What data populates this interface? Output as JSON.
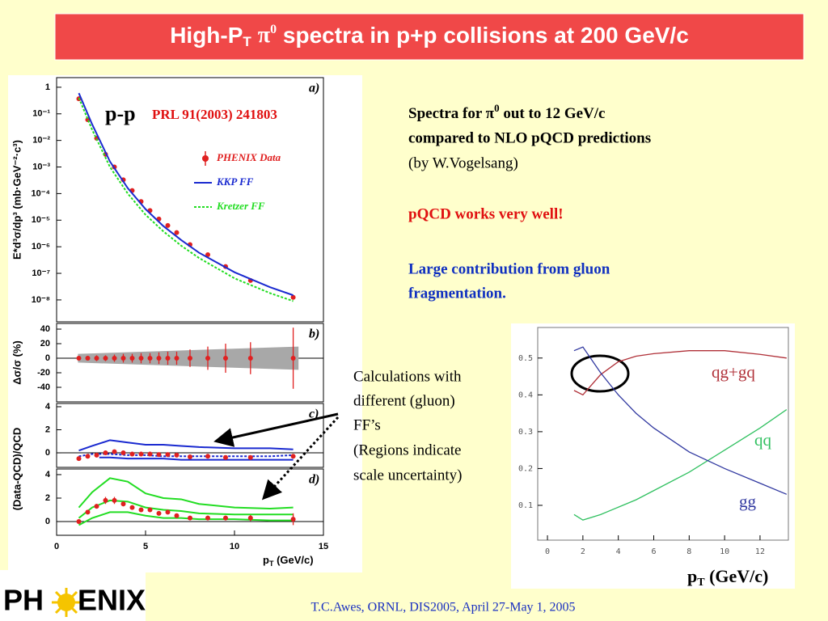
{
  "title": [
    "High-P",
    "T",
    "π",
    "0",
    " spectra in p+p collisions at 200 GeV/c"
  ],
  "note1": [
    "Spectra for π",
    "0",
    " out to 12 GeV/c"
  ],
  "note1_lines": [
    "compared to NLO pQCD predictions",
    "(by W.Vogelsang)"
  ],
  "note2": "pQCD works very well!",
  "note3": [
    "Large contribution from gluon",
    "fragmentation."
  ],
  "callout": [
    "Calculations with",
    "different (gluon)",
    "FF’s",
    "(Regions indicate",
    "scale uncertainty)"
  ],
  "footer": "T.C.Awes, ORNL,   DIS2005,   April 27-May 1, 2005",
  "logo": [
    "PH",
    "ENIX"
  ],
  "chart_data": [
    {
      "type": "scatter",
      "panel_label": "a)",
      "system": "p-p",
      "reference": "PRL 91(2003) 241803",
      "ylabel": "E*d³σ/dp³ (mb·GeV⁻²·c³)",
      "log_y": true,
      "xlim": [
        0,
        15
      ],
      "ylim": [
        1.5e-09,
        2.3
      ],
      "yticks": [
        1,
        {
          "value": 0.1,
          "label": "10⁻¹"
        },
        {
          "value": 0.01,
          "label": "10⁻²"
        },
        {
          "value": 0.001,
          "label": "10⁻³"
        },
        {
          "value": 0.0001,
          "label": "10⁻⁴"
        },
        {
          "value": 1e-05,
          "label": "10⁻⁵"
        },
        {
          "value": 1e-06,
          "label": "10⁻⁶"
        },
        {
          "value": 1e-07,
          "label": "10⁻⁷"
        },
        {
          "value": 1e-08,
          "label": "10⁻⁸"
        }
      ],
      "series": [
        {
          "name": "PHENIX Data",
          "kind": "points",
          "color": "#e02020",
          "x": [
            1.25,
            1.75,
            2.25,
            2.75,
            3.25,
            3.75,
            4.25,
            4.75,
            5.25,
            5.75,
            6.25,
            6.75,
            7.5,
            8.5,
            9.5,
            10.9,
            13.3
          ],
          "values": [
            0.37,
            0.06,
            0.012,
            0.003,
            0.001,
            0.00033,
            0.00013,
            5e-05,
            2.3e-05,
            1.1e-05,
            6.3e-06,
            3.4e-06,
            1.2e-06,
            5e-07,
            1.8e-07,
            5.4e-08,
            1.25e-08
          ]
        },
        {
          "name": "KKP FF",
          "kind": "line",
          "color": "#1a2ad0",
          "dash": false,
          "x": [
            1.25,
            2,
            3,
            4,
            5,
            6,
            7,
            8,
            10,
            12,
            13.3
          ],
          "values": [
            0.6,
            0.04,
            0.0016,
            0.00016,
            2.6e-05,
            6e-06,
            1.8e-06,
            6e-07,
            1.1e-07,
            3e-08,
            1.5e-08
          ]
        },
        {
          "name": "Kretzer FF",
          "kind": "line",
          "color": "#22dd22",
          "dash": true,
          "x": [
            1.25,
            2,
            3,
            4,
            5,
            6,
            7,
            8,
            10,
            12,
            13.3
          ],
          "values": [
            0.4,
            0.025,
            0.001,
            0.0001,
            1.6e-05,
            3.8e-06,
            1.1e-06,
            3.8e-07,
            6.5e-08,
            1.8e-08,
            9e-09
          ]
        }
      ]
    },
    {
      "type": "scatter",
      "panel_label": "b)",
      "ylabel": "Δσ/σ (%)",
      "xlim": [
        0,
        15
      ],
      "ylim": [
        -60,
        47.8
      ],
      "yticks": [
        40,
        20,
        0,
        -20,
        -40
      ],
      "series": [
        {
          "kind": "band",
          "color": "#a8a8a8",
          "x": [
            1.2,
            13.6
          ],
          "values": [
            0,
            0
          ],
          "errors": [
            6,
            16
          ]
        },
        {
          "kind": "points",
          "color": "#e02020",
          "x": [
            1.25,
            1.75,
            2.25,
            2.75,
            3.25,
            3.75,
            4.25,
            4.75,
            5.25,
            5.75,
            6.25,
            6.75,
            7.5,
            8.5,
            9.5,
            10.9,
            13.3
          ],
          "values": [
            0,
            0,
            0,
            0,
            0,
            0,
            0,
            0,
            0,
            0,
            0,
            0,
            0,
            0,
            0,
            0,
            0
          ],
          "errors": [
            3,
            3,
            4,
            4,
            5,
            6,
            6,
            7,
            7,
            8,
            9,
            9,
            12,
            16,
            20,
            22,
            42
          ]
        }
      ]
    },
    {
      "type": "scatter",
      "panel_label": "c)",
      "ylabel": "(Data-QCD)/QCD",
      "xlim": [
        0,
        15
      ],
      "ylim": [
        -1.26,
        4.28
      ],
      "yticks": [
        4,
        2,
        0
      ],
      "series": [
        {
          "kind": "line",
          "color": "#1a2ad0",
          "dash": false,
          "x": [
            1.25,
            2,
            3,
            4,
            5,
            6,
            7,
            8,
            10,
            12,
            13.3
          ],
          "values": [
            0.2,
            0.6,
            1.1,
            0.9,
            0.7,
            0.7,
            0.6,
            0.5,
            0.4,
            0.4,
            0.3
          ]
        },
        {
          "kind": "line",
          "color": "#1a2ad0",
          "dash": true,
          "x": [
            1.25,
            2,
            3,
            4,
            5,
            6,
            7,
            8,
            10,
            12,
            13.3
          ],
          "values": [
            -0.3,
            -0.1,
            -0.1,
            -0.2,
            -0.2,
            -0.3,
            -0.3,
            -0.3,
            -0.3,
            -0.3,
            -0.2
          ]
        },
        {
          "kind": "line",
          "color": "#1a2ad0",
          "dash": false,
          "x": [
            2.4,
            3,
            4,
            5,
            6,
            7,
            8,
            10,
            12,
            13.3
          ],
          "values": [
            -0.4,
            -0.4,
            -0.5,
            -0.5,
            -0.5,
            -0.6,
            -0.6,
            -0.6,
            -0.6,
            -0.6
          ]
        },
        {
          "kind": "points",
          "color": "#e02020",
          "x": [
            1.25,
            1.75,
            2.25,
            2.75,
            3.25,
            3.75,
            4.25,
            4.75,
            5.25,
            5.75,
            6.25,
            6.75,
            7.5,
            8.5,
            9.5,
            10.9,
            13.3
          ],
          "values": [
            -0.5,
            -0.3,
            -0.2,
            0,
            0.1,
            0,
            -0.1,
            -0.1,
            -0.1,
            -0.15,
            -0.15,
            -0.2,
            -0.35,
            -0.3,
            -0.4,
            -0.4,
            -0.3
          ]
        }
      ]
    },
    {
      "type": "scatter",
      "panel_label": "d)",
      "xlim": [
        0,
        15
      ],
      "ylim": [
        -1.17,
        4.48
      ],
      "yticks": [
        4,
        2,
        0
      ],
      "xticks": [
        0,
        5,
        10,
        15
      ],
      "xlabel": [
        "p",
        "T",
        " (GeV/c)"
      ],
      "series": [
        {
          "kind": "line",
          "color": "#22dd22",
          "dash": false,
          "x": [
            1.25,
            2,
            3,
            4,
            5,
            6,
            7,
            8,
            10,
            12,
            13.3
          ],
          "values": [
            1.2,
            2.5,
            3.7,
            3.4,
            2.4,
            2.0,
            1.9,
            1.5,
            1.2,
            1.1,
            1.2
          ]
        },
        {
          "kind": "line",
          "color": "#22dd22",
          "dash": false,
          "x": [
            1.25,
            2,
            3,
            4,
            5,
            6,
            7,
            8,
            10,
            12,
            13.3
          ],
          "values": [
            0.3,
            1.2,
            1.8,
            1.7,
            1.2,
            1.0,
            0.9,
            0.7,
            0.6,
            0.6,
            0.6
          ]
        },
        {
          "kind": "line",
          "color": "#22dd22",
          "dash": false,
          "x": [
            1.25,
            2,
            3,
            4,
            5,
            6,
            7,
            8,
            10,
            12,
            13.3
          ],
          "values": [
            -0.3,
            0.3,
            0.8,
            0.8,
            0.5,
            0.3,
            0.3,
            0.2,
            0.2,
            0.1,
            0.1
          ]
        },
        {
          "kind": "points",
          "color": "#e02020",
          "x": [
            1.25,
            1.75,
            2.25,
            2.75,
            3.25,
            3.75,
            4.25,
            4.75,
            5.25,
            5.75,
            6.25,
            6.75,
            7.5,
            8.5,
            9.5,
            10.9,
            13.3
          ],
          "values": [
            0,
            0.8,
            1.3,
            1.8,
            1.8,
            1.5,
            1.2,
            1.0,
            1.0,
            0.7,
            0.8,
            0.5,
            0.3,
            0.3,
            0.3,
            0.3,
            0.2
          ],
          "errors": [
            0.1,
            0.15,
            0.2,
            0.3,
            0.3,
            0.2,
            0.15,
            0.15,
            0.15,
            0.15,
            0.15,
            0.15,
            0.15,
            0.2,
            0.2,
            0.25,
            0.5
          ]
        }
      ]
    },
    {
      "type": "line",
      "xlim": [
        -0.55,
        13.6
      ],
      "ylim": [
        0.0055,
        0.583
      ],
      "xticks": [
        0,
        2,
        4,
        6,
        8,
        10,
        12
      ],
      "yticks": [
        0.1,
        0.2,
        0.3,
        0.4,
        0.5
      ],
      "xlabel": [
        "p",
        "T",
        " (GeV/c)"
      ],
      "series": [
        {
          "name": "qg+gq",
          "kind": "line",
          "color": "#b03038",
          "dash": false,
          "x": [
            1.5,
            2,
            3,
            4,
            5,
            6,
            8,
            10,
            12,
            13.5
          ],
          "values": [
            0.412,
            0.4,
            0.455,
            0.49,
            0.505,
            0.512,
            0.52,
            0.52,
            0.51,
            0.5
          ]
        },
        {
          "name": "qq",
          "kind": "line",
          "color": "#30c060",
          "dash": false,
          "x": [
            1.5,
            2,
            3,
            4,
            5,
            6,
            8,
            10,
            12,
            13.5
          ],
          "values": [
            0.075,
            0.06,
            0.075,
            0.095,
            0.115,
            0.14,
            0.19,
            0.25,
            0.31,
            0.36
          ]
        },
        {
          "name": "gg",
          "kind": "line",
          "color": "#3038a0",
          "dash": false,
          "x": [
            1.5,
            2,
            3,
            4,
            5,
            6,
            8,
            10,
            12,
            13.5
          ],
          "values": [
            0.52,
            0.53,
            0.46,
            0.4,
            0.35,
            0.31,
            0.245,
            0.2,
            0.16,
            0.13
          ]
        }
      ]
    }
  ]
}
